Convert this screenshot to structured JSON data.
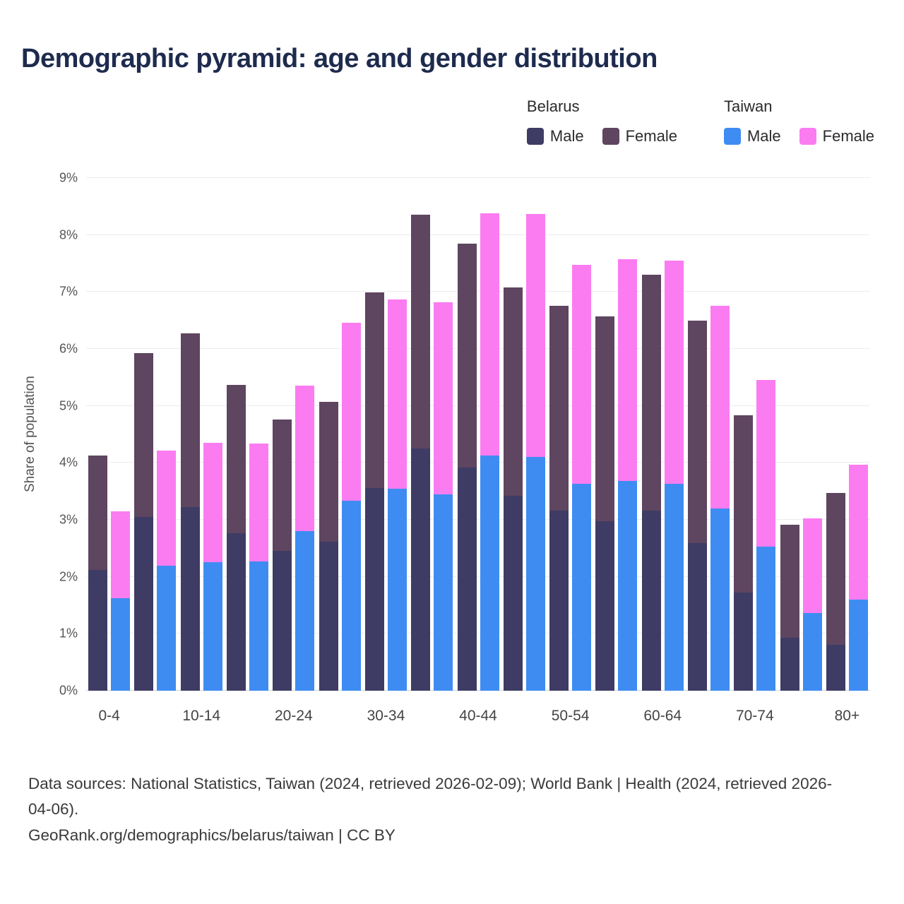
{
  "title": "Demographic pyramid: age and gender distribution",
  "legend": {
    "groups": [
      {
        "title": "Belarus",
        "items": [
          {
            "label": "Male",
            "color": "#3e3c64"
          },
          {
            "label": "Female",
            "color": "#5e4560"
          }
        ]
      },
      {
        "title": "Taiwan",
        "items": [
          {
            "label": "Male",
            "color": "#3e8cf2"
          },
          {
            "label": "Female",
            "color": "#fb7cf0"
          }
        ]
      }
    ]
  },
  "chart_data": {
    "type": "bar",
    "stacked_grouped": true,
    "title": "Demographic pyramid: age and gender distribution",
    "xlabel": "",
    "ylabel": "Share of population",
    "ylim": [
      0,
      9
    ],
    "y_ticks": [
      "0%",
      "1%",
      "2%",
      "3%",
      "4%",
      "5%",
      "6%",
      "7%",
      "8%",
      "9%"
    ],
    "categories": [
      "0-4",
      "5-9",
      "10-14",
      "15-19",
      "20-24",
      "25-29",
      "30-34",
      "35-39",
      "40-44",
      "45-49",
      "50-54",
      "55-59",
      "60-64",
      "65-69",
      "70-74",
      "75-79",
      "80+"
    ],
    "x_tick_labels": [
      "0-4",
      "10-14",
      "20-24",
      "30-34",
      "40-44",
      "50-54",
      "60-64",
      "70-74",
      "80+"
    ],
    "grid": true,
    "legend_position": "top-right",
    "series": [
      {
        "name": "Belarus Male",
        "country": "Belarus",
        "gender": "Male",
        "color": "#3e3c64",
        "values": [
          2.12,
          3.05,
          3.22,
          2.77,
          2.45,
          2.62,
          3.56,
          4.25,
          3.92,
          3.42,
          3.16,
          2.97,
          3.16,
          2.59,
          1.72,
          0.93,
          0.81
        ]
      },
      {
        "name": "Belarus Female",
        "country": "Belarus",
        "gender": "Female",
        "color": "#5e4560",
        "values": [
          2.01,
          2.87,
          3.05,
          2.6,
          2.31,
          2.45,
          3.43,
          4.1,
          3.93,
          3.66,
          3.6,
          3.6,
          4.14,
          3.9,
          3.11,
          1.98,
          2.66
        ]
      },
      {
        "name": "Taiwan Male",
        "country": "Taiwan",
        "gender": "Male",
        "color": "#3e8cf2",
        "values": [
          1.63,
          2.2,
          2.26,
          2.27,
          2.8,
          3.34,
          3.55,
          3.45,
          4.13,
          4.1,
          3.63,
          3.68,
          3.63,
          3.2,
          2.53,
          1.36,
          1.6
        ]
      },
      {
        "name": "Taiwan Female",
        "country": "Taiwan",
        "gender": "Female",
        "color": "#fb7cf0",
        "values": [
          1.52,
          2.02,
          2.09,
          2.07,
          2.55,
          3.12,
          3.32,
          3.37,
          4.25,
          4.27,
          3.85,
          3.9,
          3.92,
          3.56,
          2.93,
          1.66,
          2.37
        ]
      }
    ]
  },
  "footer": {
    "line1": "Data sources: National Statistics, Taiwan (2024, retrieved 2026-02-09); World Bank | Health (2024, retrieved 2026-04-06).",
    "line2": "GeoRank.org/demographics/belarus/taiwan | CC BY"
  }
}
